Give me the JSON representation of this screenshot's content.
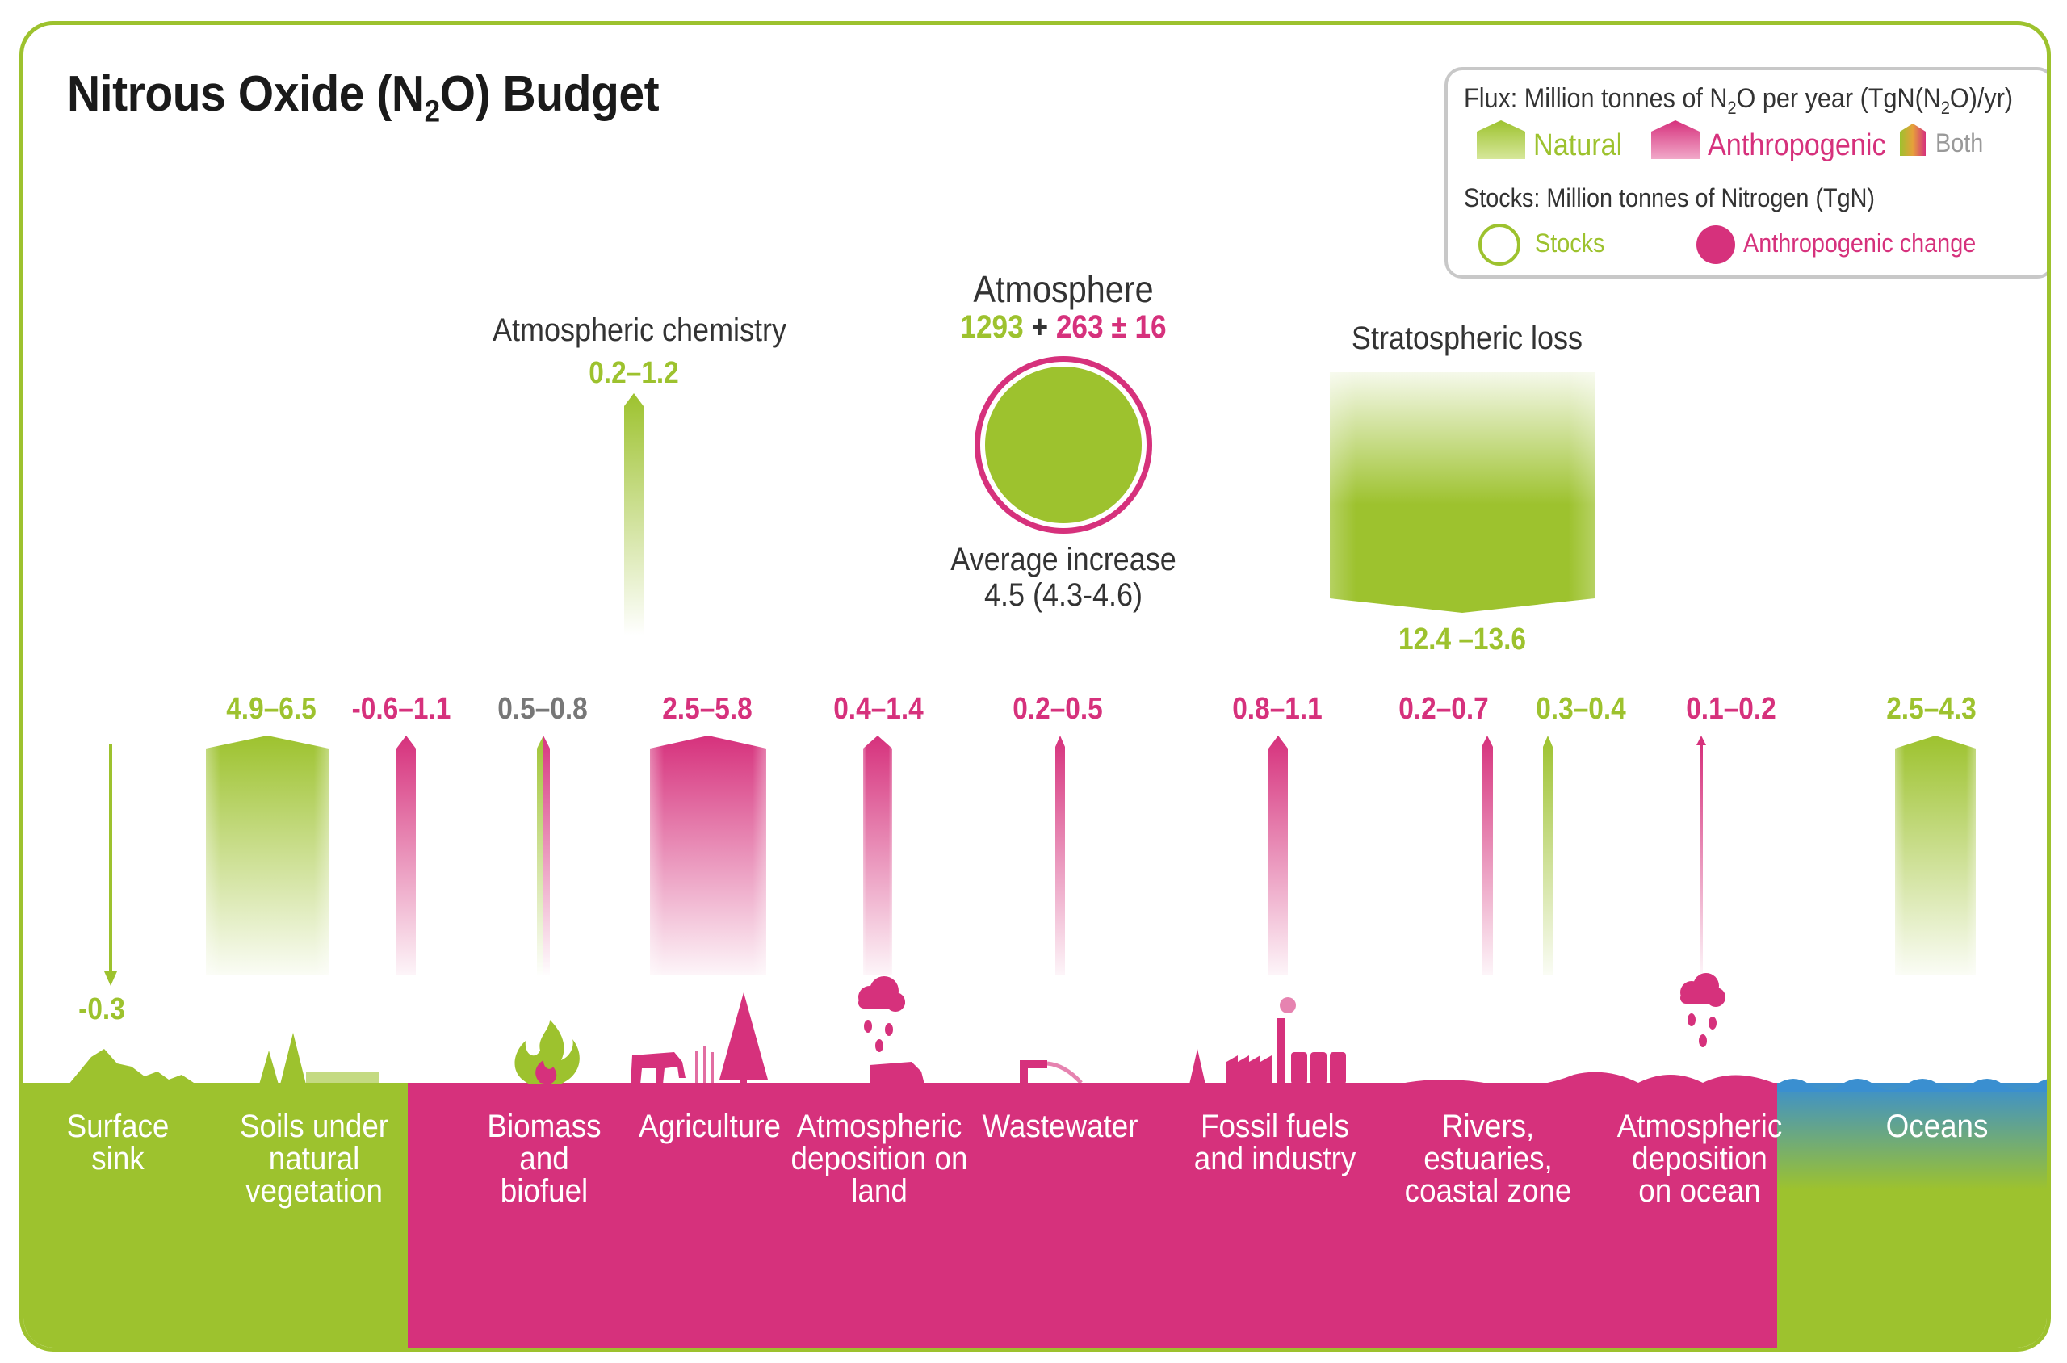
{
  "title": {
    "prefix": "Nitrous Oxide (N",
    "sub": "2",
    "suffix": "O) Budget"
  },
  "legend": {
    "flux_prefix": "Flux: Million tonnes of N",
    "flux_sub": "2",
    "flux_mid": "O per year (TgN(N",
    "flux_sub2": "2",
    "flux_suffix": "O)/yr)",
    "natural": "Natural",
    "anthropogenic": "Anthropogenic",
    "both": "Both",
    "stocks_title": "Stocks: Million tonnes of Nitrogen (TgN)",
    "stocks": "Stocks",
    "anthropogenic_change": "Anthropogenic change"
  },
  "atmosphere": {
    "title": "Atmosphere",
    "natural_stock": "1293",
    "plus": "+",
    "anthro_stock": "263",
    "pm": "± 16",
    "average_increase_label": "Average increase",
    "average_increase_value": "4.5 (4.3-4.6)"
  },
  "atmospheric_chemistry": {
    "label": "Atmospheric chemistry",
    "value": "0.2–1.2"
  },
  "stratospheric_loss": {
    "label": "Stratospheric loss",
    "value": "12.4 –13.6"
  },
  "fluxes": [
    {
      "id": "surface",
      "value": "-0.3",
      "kind": "natural",
      "direction": "down"
    },
    {
      "id": "soils",
      "value": "4.9–6.5",
      "kind": "natural",
      "direction": "up"
    },
    {
      "id": "soils-anthro",
      "value": "-0.6–1.1",
      "kind": "anthropogenic",
      "direction": "up"
    },
    {
      "id": "biomass",
      "value": "0.5–0.8",
      "kind": "both",
      "direction": "up"
    },
    {
      "id": "agriculture",
      "value": "2.5–5.8",
      "kind": "anthropogenic",
      "direction": "up"
    },
    {
      "id": "atm-dep-land",
      "value": "0.4–1.4",
      "kind": "anthropogenic",
      "direction": "up"
    },
    {
      "id": "wastewater",
      "value": "0.2–0.5",
      "kind": "anthropogenic",
      "direction": "up"
    },
    {
      "id": "fossil",
      "value": "0.8–1.1",
      "kind": "anthropogenic",
      "direction": "up"
    },
    {
      "id": "rivers-anthro",
      "value": "0.2–0.7",
      "kind": "anthropogenic",
      "direction": "up"
    },
    {
      "id": "rivers-natural",
      "value": "0.3–0.4",
      "kind": "natural",
      "direction": "up"
    },
    {
      "id": "atm-dep-ocean",
      "value": "0.1–0.2",
      "kind": "anthropogenic",
      "direction": "up"
    },
    {
      "id": "oceans",
      "value": "2.5–4.3",
      "kind": "natural",
      "direction": "up"
    }
  ],
  "categories": [
    {
      "id": "surface",
      "lines": [
        "Surface",
        "sink"
      ]
    },
    {
      "id": "soils",
      "lines": [
        "Soils under",
        "natural",
        "vegetation"
      ]
    },
    {
      "id": "biomass",
      "lines": [
        "Biomass",
        "and",
        "biofuel"
      ]
    },
    {
      "id": "agriculture",
      "lines": [
        "Agriculture"
      ]
    },
    {
      "id": "atm-dep-land",
      "lines": [
        "Atmospheric",
        "deposition on",
        "land"
      ]
    },
    {
      "id": "wastewater",
      "lines": [
        "Wastewater"
      ]
    },
    {
      "id": "fossil",
      "lines": [
        "Fossil fuels",
        "and industry"
      ]
    },
    {
      "id": "rivers",
      "lines": [
        "Rivers,",
        "estuaries,",
        "coastal zone"
      ]
    },
    {
      "id": "atm-dep-ocean",
      "lines": [
        "Atmospheric",
        "deposition",
        "on ocean"
      ]
    },
    {
      "id": "oceans",
      "lines": [
        "Oceans"
      ]
    }
  ],
  "colors": {
    "natural": "#9dc22e",
    "anthropogenic": "#d6317c",
    "both": "#8a8a8a",
    "ocean": "#3a8fd0"
  }
}
